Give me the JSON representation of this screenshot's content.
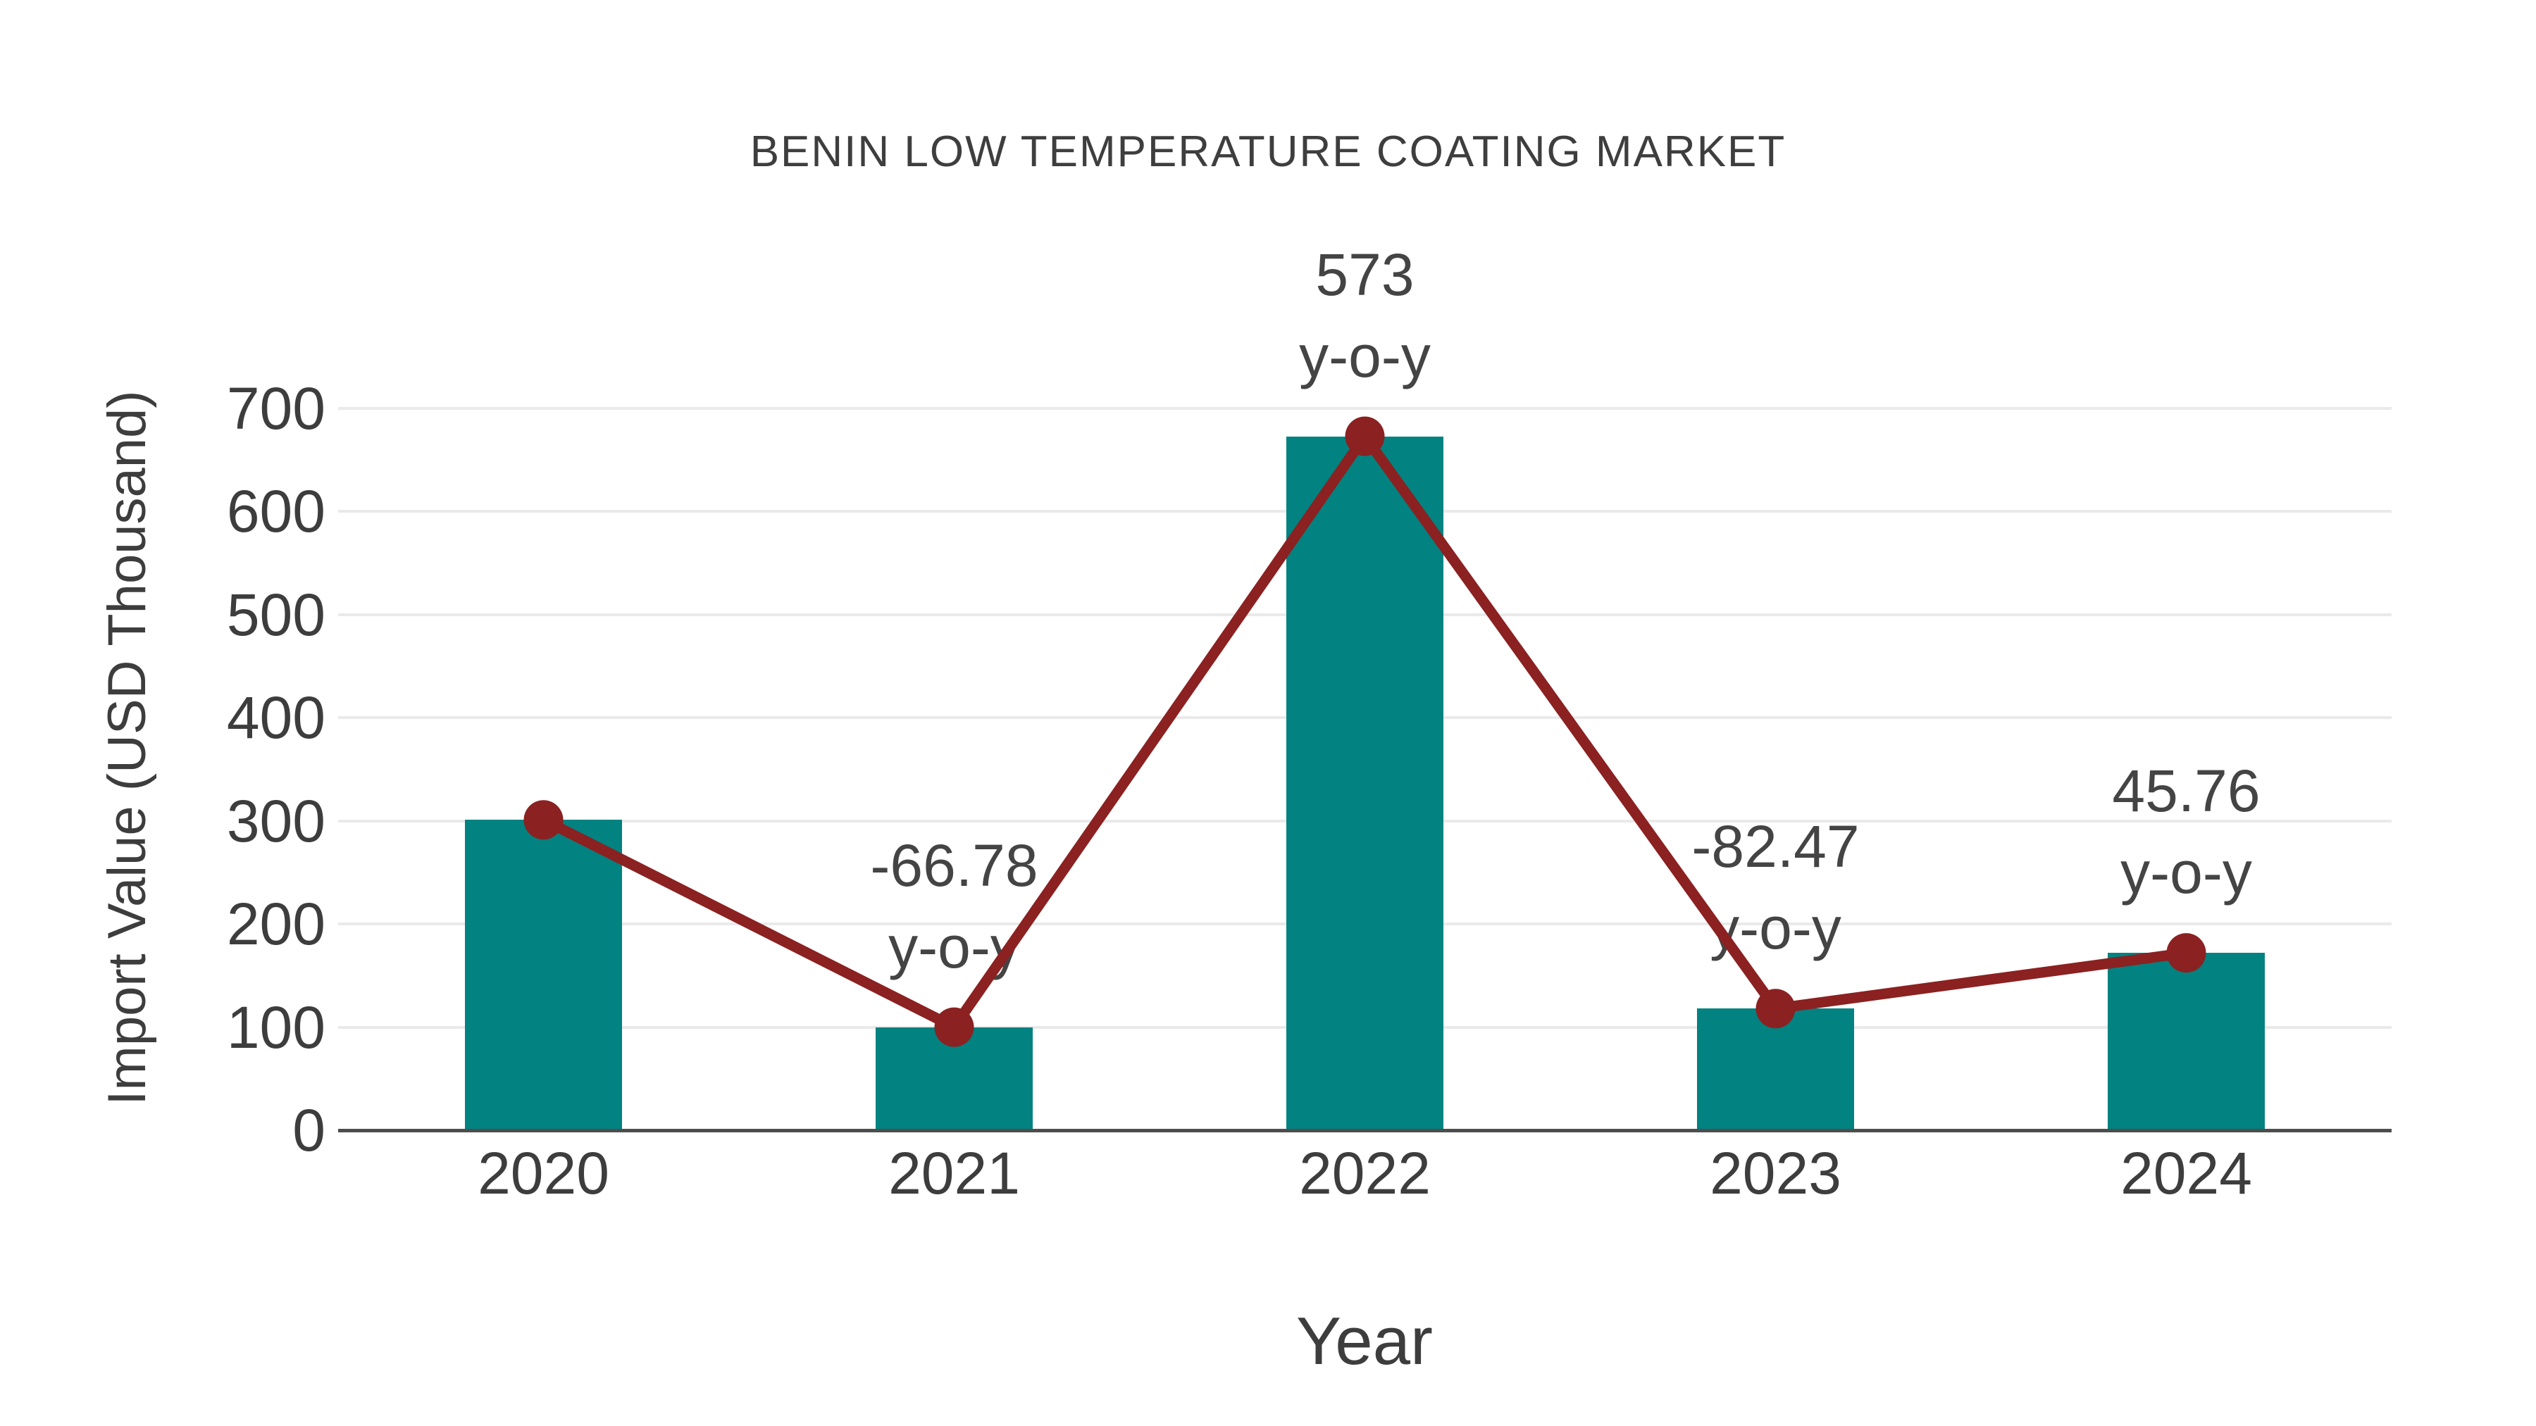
{
  "chart_data": {
    "type": "bar",
    "title": "BENIN LOW TEMPERATURE COATING MARKET",
    "xlabel": "Year",
    "ylabel": "Import Value (USD Thousand)",
    "categories": [
      "2020",
      "2021",
      "2022",
      "2023",
      "2024"
    ],
    "series": [
      {
        "name": "Import Value bars",
        "type": "bar",
        "values": [
          301,
          100,
          673,
          118,
          172
        ]
      },
      {
        "name": "Import Value trend line",
        "type": "line",
        "values": [
          301,
          100,
          673,
          118,
          172
        ]
      }
    ],
    "annotations": [
      {
        "category": "2021",
        "value": "-66.78",
        "suffix": "y-o-y"
      },
      {
        "category": "2022",
        "value": "573",
        "suffix": "y-o-y"
      },
      {
        "category": "2023",
        "value": "-82.47",
        "suffix": "y-o-y"
      },
      {
        "category": "2024",
        "value": "45.76",
        "suffix": "y-o-y"
      }
    ],
    "ylim": [
      0,
      700
    ],
    "yticks": [
      0,
      100,
      200,
      300,
      400,
      500,
      600,
      700
    ],
    "grid": "horizontal",
    "legend": "none",
    "colors": {
      "bar": "#028280",
      "line": "#8b2121",
      "grid": "#eaeaea",
      "axis": "#4d4d4d",
      "text": "#3d3d3d"
    }
  }
}
